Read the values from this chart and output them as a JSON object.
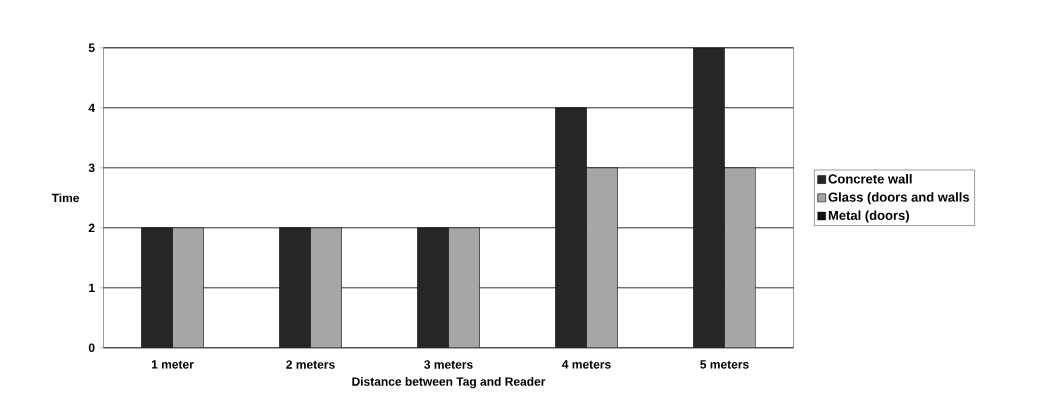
{
  "chart_data": {
    "type": "bar",
    "xlabel": "Distance between Tag and Reader",
    "ylabel": "Time",
    "categories": [
      "1 meter",
      "2 meters",
      "3 meters",
      "4 meters",
      "5 meters"
    ],
    "series": [
      {
        "name": "Concrete wall",
        "color": "#262626",
        "values": [
          2,
          2,
          2,
          4,
          5
        ]
      },
      {
        "name": "Glass (doors and walls",
        "color": "#a6a6a6",
        "values": [
          2,
          2,
          2,
          3,
          3
        ]
      },
      {
        "name": "Metal (doors)",
        "color": "#111111",
        "values": [
          null,
          null,
          null,
          null,
          null
        ]
      }
    ],
    "ylim": [
      0,
      5
    ],
    "yticks": [
      0,
      1,
      2,
      3,
      4,
      5
    ],
    "grid": "y",
    "legend": "right"
  }
}
